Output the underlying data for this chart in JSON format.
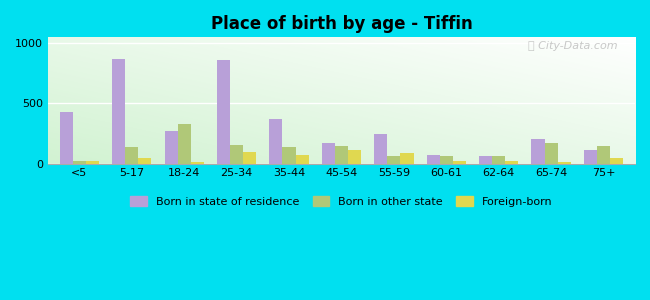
{
  "title": "Place of birth by age - Tiffin",
  "categories": [
    "<5",
    "5-17",
    "18-24",
    "25-34",
    "35-44",
    "45-54",
    "55-59",
    "60-61",
    "62-64",
    "65-74",
    "75+"
  ],
  "born_in_state": [
    430,
    870,
    270,
    860,
    370,
    175,
    245,
    75,
    65,
    205,
    110
  ],
  "born_other_state": [
    20,
    140,
    330,
    155,
    140,
    145,
    65,
    65,
    65,
    175,
    145
  ],
  "foreign_born": [
    25,
    45,
    15,
    100,
    75,
    110,
    85,
    20,
    20,
    15,
    50
  ],
  "bar_color_state": "#b8a0d8",
  "bar_color_other": "#b0c878",
  "bar_color_foreign": "#e0d850",
  "background_color_outer": "#00e0f0",
  "ylim": [
    0,
    1050
  ],
  "yticks": [
    0,
    500,
    1000
  ],
  "legend_labels": [
    "Born in state of residence",
    "Born in other state",
    "Foreign-born"
  ]
}
